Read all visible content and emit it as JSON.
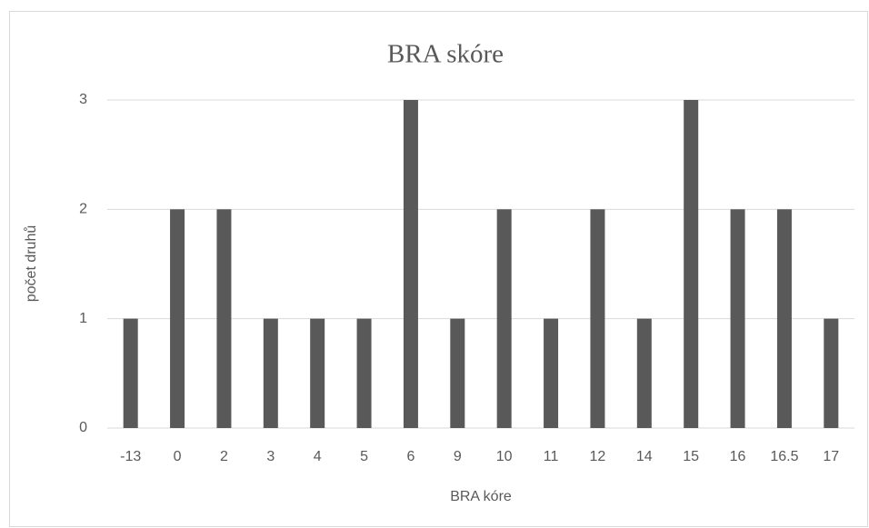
{
  "chart_data": {
    "type": "bar",
    "title": "BRA skóre",
    "x_label": "BRA kóre",
    "y_label": "počet druhů",
    "categories": [
      "-13",
      "0",
      "2",
      "3",
      "4",
      "5",
      "6",
      "9",
      "10",
      "11",
      "12",
      "14",
      "15",
      "16",
      "16.5",
      "17"
    ],
    "values": [
      1,
      2,
      2,
      1,
      1,
      1,
      3,
      1,
      2,
      1,
      2,
      1,
      3,
      2,
      2,
      1
    ],
    "color": "#595959",
    "ylim": [
      0,
      3
    ],
    "yticks": [
      0,
      1,
      2,
      3
    ],
    "grid": true
  }
}
